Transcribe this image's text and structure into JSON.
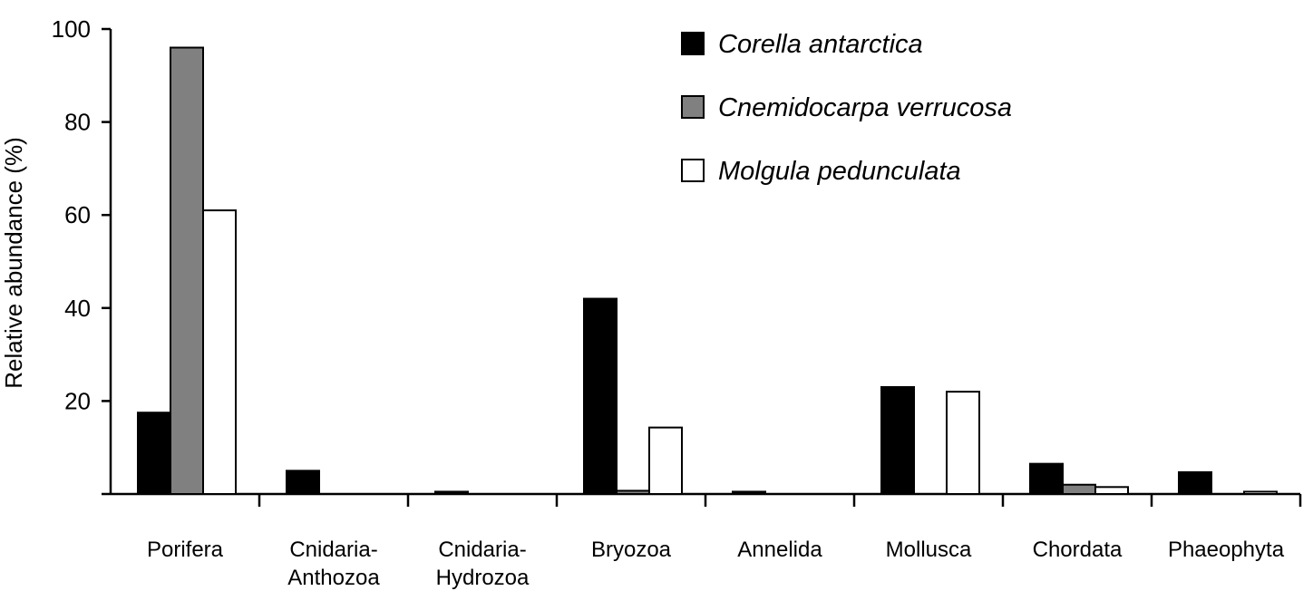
{
  "chart_data": {
    "type": "bar",
    "title": "",
    "xlabel": "",
    "ylabel": "Relative abundance (%)",
    "ylim": [
      0,
      100
    ],
    "yticks": [
      20,
      40,
      60,
      80,
      100
    ],
    "grid": false,
    "legend_position": "top-right",
    "categories": [
      "Porifera",
      "Cnidaria-\nAnthozoa",
      "Cnidaria-\nHydrozoa",
      "Bryozoa",
      "Annelida",
      "Mollusca",
      "Chordata",
      "Phaeophyta"
    ],
    "series": [
      {
        "name": "Corella antarctica",
        "color": "#000000",
        "values": [
          17.5,
          5,
          0.5,
          42,
          0.5,
          23,
          6.5,
          4.7
        ]
      },
      {
        "name": "Cnemidocarpa verrucosa",
        "color": "#808080",
        "values": [
          96,
          0,
          0,
          0.7,
          0,
          0,
          2,
          0
        ]
      },
      {
        "name": "Molgula pedunculata",
        "color": "#ffffff",
        "values": [
          61,
          0,
          0,
          14.3,
          0,
          22,
          1.5,
          0.5
        ]
      }
    ]
  }
}
